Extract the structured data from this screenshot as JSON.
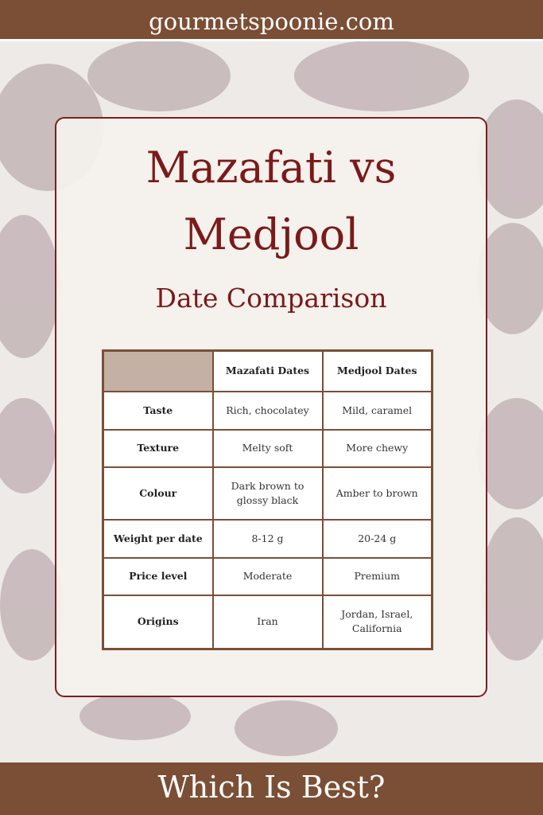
{
  "header": {
    "site": "gourmetspoonie.com"
  },
  "title": {
    "line1": "Mazafati vs",
    "line2": "Medjool",
    "subtitle": "Date Comparison"
  },
  "table": {
    "columns": [
      "Mazafati Dates",
      "Medjool Dates"
    ],
    "rows": [
      [
        "Taste",
        "Rich, chocolatey",
        "Mild, caramel"
      ],
      [
        "Texture",
        "Melty soft",
        "More chewy"
      ],
      [
        "Colour",
        "Dark brown to glossy black",
        "Amber to brown"
      ],
      [
        "Weight per date",
        "8-12 g",
        "20-24 g"
      ],
      [
        "Price level",
        "Moderate",
        "Premium"
      ],
      [
        "Origins",
        "Iran",
        "Jordan, Israel, California"
      ]
    ]
  },
  "footer": {
    "text": "Which Is Best?"
  }
}
